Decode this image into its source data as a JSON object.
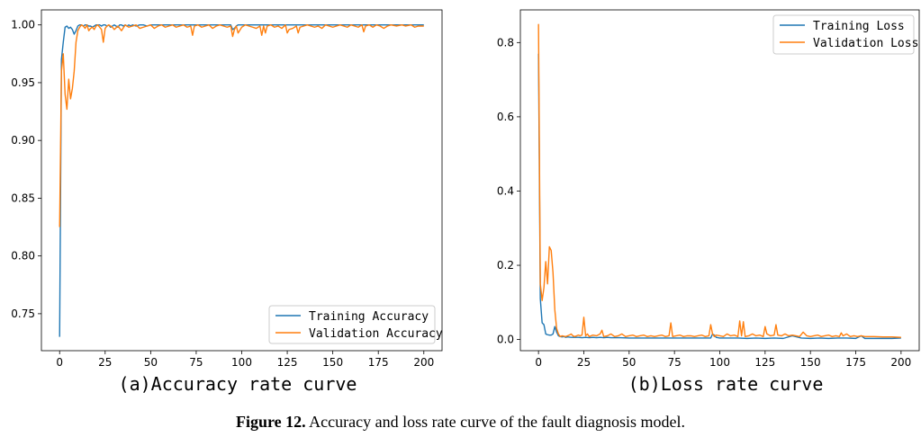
{
  "caption": {
    "label": "Figure 12.",
    "text": "Accuracy and loss rate curve of the fault diagnosis model."
  },
  "colors": {
    "training": "#1f77b4",
    "validation": "#ff7f0e"
  },
  "chart_data": [
    {
      "id": "accuracy",
      "type": "line",
      "title": "(a)Accuracy rate curve",
      "xlabel": "",
      "ylabel": "",
      "xlim": [
        -10,
        210
      ],
      "ylim": [
        0.718,
        1.013
      ],
      "xticks": [
        0,
        25,
        50,
        75,
        100,
        125,
        150,
        175,
        200
      ],
      "yticks": [
        0.75,
        0.8,
        0.85,
        0.9,
        0.95,
        1.0
      ],
      "ytick_labels": [
        "0.75",
        "0.80",
        "0.85",
        "0.90",
        "0.95",
        "1.00"
      ],
      "legend_position": "lower-right",
      "series": [
        {
          "name": "Training Accuracy",
          "x": [
            0,
            1,
            2,
            3,
            4,
            5,
            6,
            7,
            8,
            9,
            10,
            11,
            12,
            13,
            14,
            15,
            16,
            17,
            18,
            19,
            20,
            21,
            22,
            23,
            24,
            25,
            26,
            27,
            28,
            29,
            30,
            31,
            32,
            33,
            34,
            35,
            36,
            37,
            38,
            39,
            40,
            42,
            44,
            46,
            48,
            50,
            55,
            60,
            65,
            70,
            75,
            80,
            85,
            90,
            94,
            95,
            96,
            97,
            98,
            100,
            105,
            110,
            115,
            120,
            125,
            130,
            135,
            140,
            145,
            150,
            155,
            160,
            165,
            170,
            175,
            180,
            185,
            190,
            195,
            200
          ],
          "y": [
            0.73,
            0.97,
            0.985,
            0.998,
            0.999,
            0.997,
            0.998,
            0.996,
            0.992,
            0.995,
            0.999,
            1.0,
            1.0,
            0.999,
            1.0,
            1.0,
            0.999,
            0.999,
            0.998,
            0.999,
            1.0,
            1.0,
            1.0,
            0.999,
            1.0,
            1.0,
            0.999,
            1.0,
            0.998,
            0.999,
            1.0,
            0.999,
            0.998,
            1.0,
            1.0,
            0.999,
            1.0,
            0.999,
            1.0,
            0.999,
            1.0,
            0.999,
            1.0,
            1.0,
            0.999,
            1.0,
            1.0,
            1.0,
            1.0,
            1.0,
            1.0,
            1.0,
            1.0,
            1.0,
            1.0,
            0.996,
            0.997,
            0.999,
            1.0,
            1.0,
            1.0,
            1.0,
            1.0,
            1.0,
            1.0,
            1.0,
            1.0,
            1.0,
            1.0,
            1.0,
            1.0,
            1.0,
            1.0,
            1.0,
            1.0,
            1.0,
            1.0,
            1.0,
            1.0,
            1.0
          ]
        },
        {
          "name": "Validation Accuracy",
          "x": [
            0,
            1,
            2,
            3,
            4,
            5,
            6,
            7,
            8,
            9,
            10,
            11,
            12,
            13,
            14,
            15,
            16,
            17,
            18,
            19,
            20,
            21,
            22,
            23,
            24,
            25,
            26,
            27,
            28,
            29,
            30,
            32,
            34,
            36,
            38,
            40,
            42,
            44,
            46,
            48,
            50,
            52,
            54,
            56,
            58,
            60,
            62,
            64,
            66,
            68,
            70,
            72,
            73,
            74,
            76,
            78,
            80,
            82,
            84,
            86,
            88,
            90,
            92,
            94,
            95,
            96,
            97,
            98,
            100,
            102,
            104,
            106,
            108,
            110,
            111,
            112,
            113,
            114,
            116,
            118,
            120,
            122,
            124,
            125,
            126,
            128,
            130,
            131,
            132,
            134,
            136,
            138,
            140,
            142,
            144,
            146,
            148,
            150,
            152,
            154,
            156,
            158,
            160,
            162,
            164,
            166,
            167,
            168,
            170,
            172,
            174,
            176,
            178,
            180,
            182,
            185,
            188,
            190,
            193,
            195,
            197,
            200
          ],
          "y": [
            0.825,
            0.96,
            0.975,
            0.94,
            0.927,
            0.953,
            0.936,
            0.945,
            0.96,
            0.985,
            0.995,
            0.998,
            1.0,
            0.999,
            0.997,
            1.0,
            0.995,
            0.997,
            0.998,
            0.996,
            0.999,
            1.0,
            0.998,
            0.996,
            0.985,
            0.997,
            0.999,
            1.0,
            0.999,
            0.998,
            0.996,
            0.999,
            0.995,
            1.0,
            0.998,
            0.999,
            1.0,
            0.997,
            0.998,
            0.999,
            1.0,
            0.997,
            0.999,
            1.0,
            0.998,
            0.999,
            1.0,
            0.998,
            0.999,
            1.0,
            0.998,
            0.999,
            0.991,
            0.999,
            1.0,
            0.998,
            0.999,
            1.0,
            0.997,
            0.999,
            1.0,
            0.999,
            0.998,
            0.999,
            0.99,
            0.996,
            0.999,
            0.993,
            0.998,
            1.0,
            0.999,
            0.998,
            0.997,
            0.999,
            0.991,
            0.999,
            0.993,
            0.999,
            1.0,
            0.998,
            0.999,
            0.997,
            1.0,
            0.993,
            0.996,
            0.997,
            0.999,
            0.993,
            0.998,
            0.999,
            1.0,
            0.999,
            0.998,
            0.999,
            0.997,
            1.0,
            0.999,
            0.998,
            0.999,
            1.0,
            0.999,
            0.998,
            1.0,
            0.999,
            0.998,
            1.0,
            0.994,
            0.999,
            1.0,
            0.998,
            1.0,
            0.999,
            0.997,
            0.999,
            1.0,
            0.999,
            1.0,
            0.999,
            1.0,
            0.998,
            0.999,
            0.999
          ]
        }
      ]
    },
    {
      "id": "loss",
      "type": "line",
      "title": "(b)Loss rate curve",
      "xlabel": "",
      "ylabel": "",
      "xlim": [
        -10,
        210
      ],
      "ylim": [
        -0.03,
        0.888
      ],
      "xticks": [
        0,
        25,
        50,
        75,
        100,
        125,
        150,
        175,
        200
      ],
      "yticks": [
        0.0,
        0.2,
        0.4,
        0.6,
        0.8
      ],
      "ytick_labels": [
        "0.0",
        "0.2",
        "0.4",
        "0.6",
        "0.8"
      ],
      "legend_position": "top-right",
      "series": [
        {
          "name": "Training Loss",
          "x": [
            0,
            1,
            2,
            3,
            4,
            5,
            6,
            7,
            8,
            9,
            10,
            11,
            12,
            13,
            14,
            15,
            16,
            18,
            20,
            22,
            24,
            26,
            28,
            30,
            32,
            34,
            36,
            38,
            40,
            45,
            50,
            55,
            60,
            65,
            70,
            75,
            80,
            85,
            90,
            95,
            96,
            97,
            98,
            100,
            105,
            110,
            115,
            120,
            125,
            130,
            135,
            140,
            145,
            150,
            155,
            160,
            165,
            170,
            175,
            178,
            180,
            185,
            190,
            195,
            200
          ],
          "y": [
            0.77,
            0.11,
            0.045,
            0.04,
            0.015,
            0.013,
            0.012,
            0.012,
            0.015,
            0.035,
            0.02,
            0.01,
            0.008,
            0.007,
            0.008,
            0.006,
            0.007,
            0.006,
            0.006,
            0.006,
            0.005,
            0.006,
            0.005,
            0.006,
            0.005,
            0.006,
            0.005,
            0.006,
            0.005,
            0.005,
            0.004,
            0.004,
            0.004,
            0.004,
            0.004,
            0.004,
            0.004,
            0.004,
            0.004,
            0.004,
            0.015,
            0.012,
            0.006,
            0.004,
            0.004,
            0.004,
            0.003,
            0.004,
            0.003,
            0.004,
            0.003,
            0.01,
            0.004,
            0.003,
            0.004,
            0.003,
            0.004,
            0.004,
            0.003,
            0.01,
            0.003,
            0.003,
            0.003,
            0.003,
            0.004
          ]
        },
        {
          "name": "Validation Loss",
          "x": [
            0,
            1,
            2,
            3,
            4,
            5,
            6,
            7,
            8,
            9,
            10,
            11,
            12,
            13,
            14,
            15,
            16,
            17,
            18,
            19,
            20,
            21,
            22,
            23,
            24,
            25,
            26,
            27,
            28,
            30,
            32,
            34,
            35,
            36,
            38,
            40,
            42,
            44,
            46,
            48,
            50,
            52,
            54,
            56,
            58,
            60,
            62,
            64,
            66,
            68,
            70,
            72,
            73,
            74,
            76,
            78,
            80,
            82,
            84,
            86,
            88,
            90,
            92,
            94,
            95,
            96,
            97,
            98,
            100,
            102,
            104,
            106,
            108,
            110,
            111,
            112,
            113,
            114,
            116,
            118,
            120,
            122,
            124,
            125,
            126,
            128,
            130,
            131,
            132,
            134,
            136,
            138,
            140,
            142,
            144,
            146,
            148,
            150,
            152,
            154,
            156,
            158,
            160,
            162,
            164,
            166,
            167,
            168,
            170,
            172,
            174,
            176,
            178,
            180,
            185,
            190,
            195,
            200
          ],
          "y": [
            0.85,
            0.15,
            0.105,
            0.14,
            0.21,
            0.15,
            0.25,
            0.24,
            0.18,
            0.08,
            0.03,
            0.015,
            0.008,
            0.01,
            0.009,
            0.008,
            0.01,
            0.012,
            0.015,
            0.01,
            0.008,
            0.01,
            0.012,
            0.01,
            0.012,
            0.06,
            0.01,
            0.015,
            0.008,
            0.012,
            0.01,
            0.015,
            0.025,
            0.008,
            0.01,
            0.015,
            0.008,
            0.01,
            0.015,
            0.008,
            0.01,
            0.012,
            0.008,
            0.01,
            0.012,
            0.008,
            0.01,
            0.008,
            0.01,
            0.012,
            0.008,
            0.01,
            0.045,
            0.008,
            0.01,
            0.012,
            0.008,
            0.01,
            0.01,
            0.008,
            0.01,
            0.012,
            0.008,
            0.01,
            0.04,
            0.015,
            0.008,
            0.012,
            0.01,
            0.008,
            0.015,
            0.01,
            0.012,
            0.008,
            0.05,
            0.01,
            0.048,
            0.008,
            0.01,
            0.015,
            0.01,
            0.012,
            0.008,
            0.035,
            0.015,
            0.01,
            0.012,
            0.04,
            0.012,
            0.01,
            0.015,
            0.01,
            0.012,
            0.01,
            0.008,
            0.02,
            0.01,
            0.008,
            0.01,
            0.012,
            0.008,
            0.01,
            0.012,
            0.008,
            0.01,
            0.008,
            0.018,
            0.01,
            0.015,
            0.008,
            0.01,
            0.008,
            0.01,
            0.008,
            0.008,
            0.007,
            0.007,
            0.006
          ]
        }
      ]
    }
  ]
}
